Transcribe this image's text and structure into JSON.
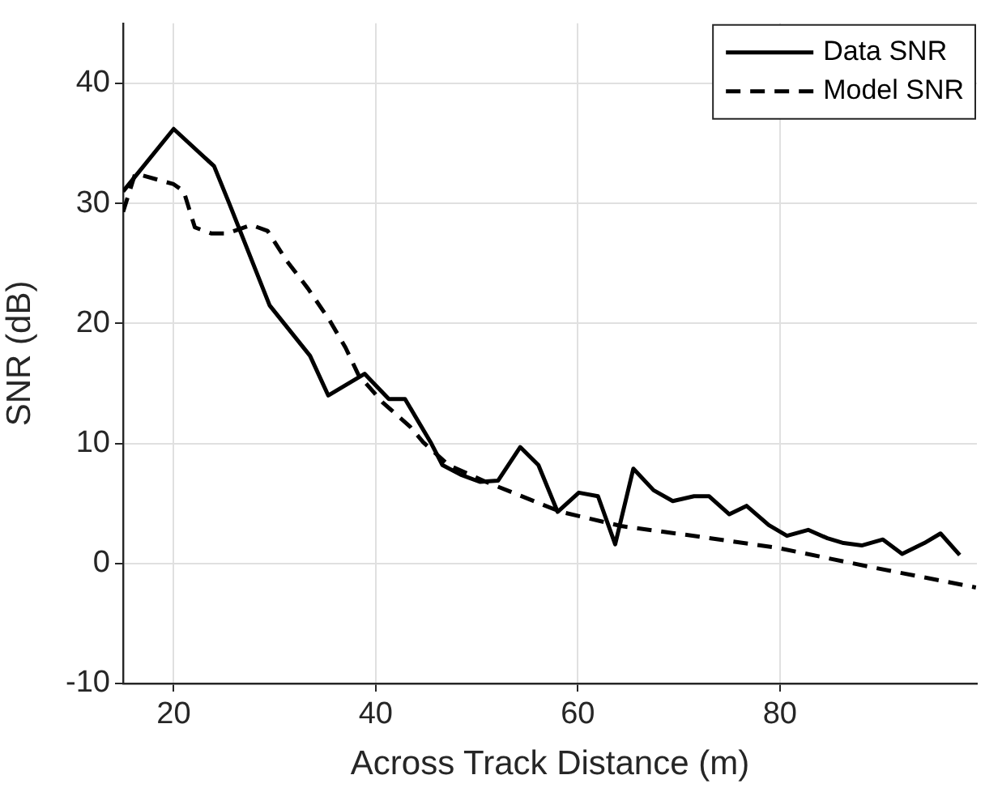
{
  "chart_data": {
    "type": "line",
    "xlabel": "Across Track Distance (m)",
    "ylabel": "SNR (dB)",
    "xlim": [
      15,
      99.5
    ],
    "ylim": [
      -10,
      45
    ],
    "xticks": [
      20,
      40,
      60,
      80
    ],
    "yticks": [
      -10,
      0,
      10,
      20,
      30,
      40
    ],
    "grid": true,
    "legend": "top right",
    "marker": "none",
    "series": [
      {
        "name": "Data SNR",
        "color": "#000000",
        "line_style": "solid",
        "x": [
          15,
          20,
          24,
          25.5,
          29.5,
          33.5,
          35.3,
          38.9,
          39.7,
          41.3,
          42.9,
          45.5,
          46.6,
          48.4,
          50.3,
          52.1,
          54.3,
          56.1,
          58,
          60.1,
          62,
          63.7,
          65.5,
          67.5,
          69.4,
          71.5,
          73,
          75,
          76.7,
          78.9,
          80.7,
          82.8,
          84.7,
          86.3,
          88.1,
          90.2,
          92.1,
          94.3,
          95.9,
          97.8
        ],
        "values": [
          31,
          36.2,
          33.1,
          30,
          21.5,
          17.3,
          14,
          15.8,
          15.1,
          13.7,
          13.7,
          10,
          8.2,
          7.4,
          6.8,
          6.9,
          9.7,
          8.2,
          4.3,
          5.9,
          5.6,
          1.6,
          7.9,
          6.1,
          5.2,
          5.6,
          5.6,
          4.1,
          4.8,
          3.2,
          2.3,
          2.8,
          2.1,
          1.7,
          1.5,
          2,
          0.8,
          1.7,
          2.5,
          0.7
        ]
      },
      {
        "name": "Model SNR",
        "color": "#000000",
        "line_style": "dashed",
        "x": [
          15,
          16.2,
          20,
          21,
          22.1,
          23.7,
          25.3,
          27.7,
          29.3,
          31.2,
          33.3,
          35.4,
          37,
          38.3,
          40.7,
          43.4,
          44.7,
          47.2,
          50.9,
          58.3,
          64.4,
          70.6,
          79.8,
          89,
          99.4
        ],
        "values": [
          29.3,
          32.5,
          31.6,
          31,
          28,
          27.5,
          27.5,
          28.2,
          27.7,
          25.2,
          22.9,
          20.3,
          18,
          15.7,
          13.4,
          11.4,
          10.1,
          8.2,
          6.8,
          4.3,
          3.1,
          2.4,
          1.3,
          -0.3,
          -2
        ]
      }
    ]
  }
}
